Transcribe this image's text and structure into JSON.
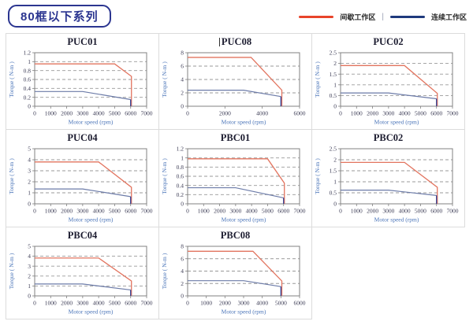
{
  "header": {
    "series_title": "80框以下系列"
  },
  "legend": {
    "separator": "|",
    "items": [
      {
        "label": "间歇工作区",
        "color": "#e8442a"
      },
      {
        "label": "连续工作区",
        "color": "#1f3a7d"
      }
    ]
  },
  "colors": {
    "red_line": "#e2745f",
    "blue_line": "#6c7ba8",
    "blue_drop": "#2f3f93",
    "grid_line": "#999999",
    "plot_border": "#808080",
    "tick_text": "#3c3c55",
    "axis_label": "#4a74b8",
    "header_navy": "#2b3590",
    "cell_border": "#dcdcdc"
  },
  "chart_data": [
    {
      "type": "line",
      "title": "PUC01",
      "caret": false,
      "xlabel": "Motor speed (rpm)",
      "ylabel": "Torque ( N-m )",
      "xlim": [
        0,
        7000
      ],
      "xticks": [
        0,
        1000,
        2000,
        3000,
        4000,
        5000,
        6000,
        7000
      ],
      "ylim": [
        0,
        1.2
      ],
      "yticks": [
        0,
        0.2,
        0.4,
        0.6,
        0.8,
        1,
        1.2
      ],
      "series": [
        {
          "name": "间歇工作区",
          "color_key": "red",
          "points": [
            [
              0,
              0.95
            ],
            [
              5000,
              0.95
            ],
            [
              6050,
              0.67
            ],
            [
              6050,
              0
            ]
          ]
        },
        {
          "name": "连续工作区",
          "color_key": "blue",
          "points": [
            [
              0,
              0.33
            ],
            [
              3000,
              0.33
            ],
            [
              6000,
              0.15
            ],
            [
              6000,
              0
            ]
          ]
        }
      ]
    },
    {
      "type": "line",
      "title": "PUC08",
      "caret": true,
      "xlabel": "Motor speed (rpm)",
      "ylabel": "Torque ( N-m )",
      "xlim": [
        0,
        6000
      ],
      "xticks": [
        0,
        2000,
        4000,
        6000
      ],
      "ylim": [
        0,
        8
      ],
      "yticks": [
        0,
        2,
        4,
        6,
        8
      ],
      "series": [
        {
          "name": "间歇工作区",
          "color_key": "red",
          "points": [
            [
              0,
              7.3
            ],
            [
              3400,
              7.3
            ],
            [
              5050,
              2.4
            ],
            [
              5050,
              0
            ]
          ]
        },
        {
          "name": "连续工作区",
          "color_key": "blue",
          "points": [
            [
              0,
              2.4
            ],
            [
              3000,
              2.4
            ],
            [
              5000,
              1.45
            ],
            [
              5000,
              0
            ]
          ]
        }
      ]
    },
    {
      "type": "line",
      "title": "PUC02",
      "caret": false,
      "xlabel": "Motor speed (rpm)",
      "ylabel": "Torque ( N-m )",
      "xlim": [
        0,
        7000
      ],
      "xticks": [
        0,
        1000,
        2000,
        3000,
        4000,
        5000,
        6000,
        7000
      ],
      "ylim": [
        0,
        2.5
      ],
      "yticks": [
        0,
        0.5,
        1,
        1.5,
        2,
        2.5
      ],
      "series": [
        {
          "name": "间歇工作区",
          "color_key": "red",
          "points": [
            [
              0,
              1.9
            ],
            [
              4000,
              1.9
            ],
            [
              6050,
              0.6
            ],
            [
              6050,
              0
            ]
          ]
        },
        {
          "name": "连续工作区",
          "color_key": "blue",
          "points": [
            [
              0,
              0.62
            ],
            [
              3000,
              0.62
            ],
            [
              6000,
              0.35
            ],
            [
              6000,
              0
            ]
          ]
        }
      ]
    },
    {
      "type": "line",
      "title": "PUC04",
      "caret": false,
      "xlabel": "Motor speed (rpm)",
      "ylabel": "Torque ( N-m )",
      "xlim": [
        0,
        7000
      ],
      "xticks": [
        0,
        1000,
        2000,
        3000,
        4000,
        5000,
        6000,
        7000
      ],
      "ylim": [
        0,
        5
      ],
      "yticks": [
        0,
        1,
        2,
        3,
        4,
        5
      ],
      "series": [
        {
          "name": "间歇工作区",
          "color_key": "red",
          "points": [
            [
              0,
              3.8
            ],
            [
              4000,
              3.8
            ],
            [
              6050,
              1.5
            ],
            [
              6050,
              0
            ]
          ]
        },
        {
          "name": "连续工作区",
          "color_key": "blue",
          "points": [
            [
              0,
              1.35
            ],
            [
              3000,
              1.35
            ],
            [
              6000,
              0.65
            ],
            [
              6000,
              0
            ]
          ]
        }
      ]
    },
    {
      "type": "line",
      "title": "PBC01",
      "caret": false,
      "xlabel": "Motor speed (rpm)",
      "ylabel": "Torque ( N-m )",
      "xlim": [
        0,
        7000
      ],
      "xticks": [
        0,
        1000,
        2000,
        3000,
        4000,
        5000,
        6000,
        7000
      ],
      "ylim": [
        0,
        1.2
      ],
      "yticks": [
        0,
        0.2,
        0.4,
        0.6,
        0.8,
        1,
        1.2
      ],
      "series": [
        {
          "name": "间歇工作区",
          "color_key": "red",
          "points": [
            [
              0,
              0.98
            ],
            [
              5000,
              0.98
            ],
            [
              6050,
              0.45
            ],
            [
              6050,
              0
            ]
          ]
        },
        {
          "name": "连续工作区",
          "color_key": "blue",
          "points": [
            [
              0,
              0.35
            ],
            [
              3000,
              0.35
            ],
            [
              6000,
              0.13
            ],
            [
              6000,
              0
            ]
          ]
        }
      ]
    },
    {
      "type": "line",
      "title": "PBC02",
      "caret": false,
      "xlabel": "Motor speed (rpm)",
      "ylabel": "Torque ( N-m )",
      "xlim": [
        0,
        7000
      ],
      "xticks": [
        0,
        1000,
        2000,
        3000,
        4000,
        5000,
        6000,
        7000
      ],
      "ylim": [
        0,
        2.5
      ],
      "yticks": [
        0,
        0.5,
        1,
        1.5,
        2,
        2.5
      ],
      "series": [
        {
          "name": "间歇工作区",
          "color_key": "red",
          "points": [
            [
              0,
              1.88
            ],
            [
              4000,
              1.88
            ],
            [
              6050,
              0.75
            ],
            [
              6050,
              0
            ]
          ]
        },
        {
          "name": "连续工作区",
          "color_key": "blue",
          "points": [
            [
              0,
              0.62
            ],
            [
              3000,
              0.62
            ],
            [
              6000,
              0.38
            ],
            [
              6000,
              0
            ]
          ]
        }
      ]
    },
    {
      "type": "line",
      "title": "PBC04",
      "caret": false,
      "xlabel": "Motor speed (rpm)",
      "ylabel": "Torque ( N-m )",
      "xlim": [
        0,
        7000
      ],
      "xticks": [
        0,
        1000,
        2000,
        3000,
        4000,
        5000,
        6000,
        7000
      ],
      "ylim": [
        0,
        5
      ],
      "yticks": [
        0,
        1,
        2,
        3,
        4,
        5
      ],
      "series": [
        {
          "name": "间歇工作区",
          "color_key": "red",
          "points": [
            [
              0,
              3.82
            ],
            [
              4000,
              3.82
            ],
            [
              6050,
              1.5
            ],
            [
              6050,
              0
            ]
          ]
        },
        {
          "name": "连续工作区",
          "color_key": "blue",
          "points": [
            [
              0,
              1.2
            ],
            [
              3000,
              1.2
            ],
            [
              6000,
              0.6
            ],
            [
              6000,
              0
            ]
          ]
        }
      ]
    },
    {
      "type": "line",
      "title": "PBC08",
      "caret": false,
      "xlabel": "Motor speed (rpm)",
      "ylabel": "Torque ( N-m )",
      "xlim": [
        0,
        6000
      ],
      "xticks": [
        0,
        1000,
        2000,
        3000,
        4000,
        5000,
        6000
      ],
      "ylim": [
        0,
        8
      ],
      "yticks": [
        0,
        2,
        4,
        6,
        8
      ],
      "series": [
        {
          "name": "间歇工作区",
          "color_key": "red",
          "points": [
            [
              0,
              7.2
            ],
            [
              3500,
              7.2
            ],
            [
              5050,
              2.4
            ],
            [
              5050,
              0
            ]
          ]
        },
        {
          "name": "连续工作区",
          "color_key": "blue",
          "points": [
            [
              0,
              2.45
            ],
            [
              3000,
              2.45
            ],
            [
              5000,
              1.5
            ],
            [
              5000,
              0
            ]
          ]
        }
      ]
    }
  ]
}
